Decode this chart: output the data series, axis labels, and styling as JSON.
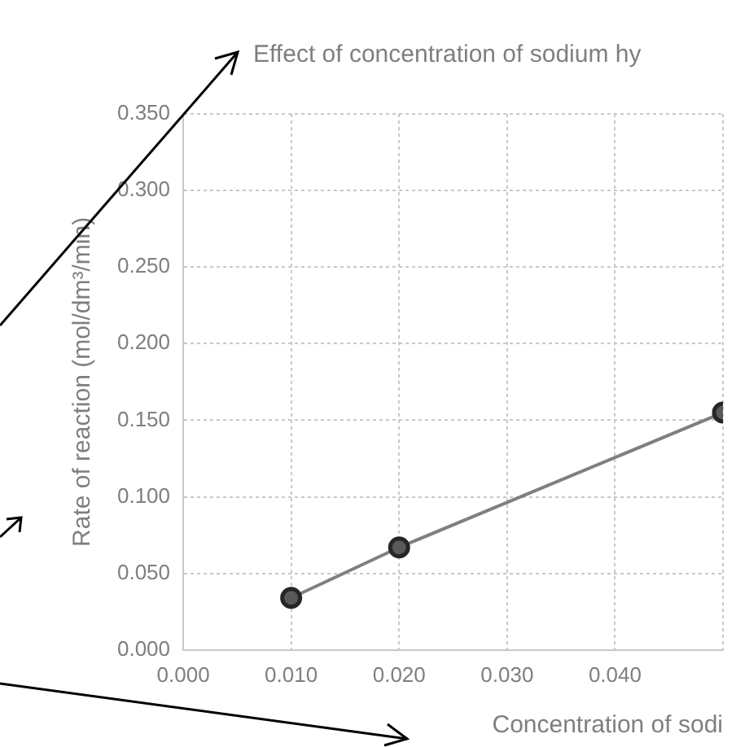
{
  "chart_data": {
    "type": "line",
    "title": "Effect of concentration of sodium hy",
    "xlabel": "Concentration of sodi",
    "ylabel": "Rate of reaction (mol/dm³/min)",
    "x": [
      0.01,
      0.02,
      0.05
    ],
    "series": [
      {
        "color": "#7f7f7f",
        "values": [
          0.034,
          0.067,
          0.155
        ]
      }
    ],
    "xlim": [
      0,
      0.05
    ],
    "xticks": [
      {
        "value": 0,
        "label": "0.000"
      },
      {
        "value": 0.01,
        "label": "0.010"
      },
      {
        "value": 0.02,
        "label": "0.020"
      },
      {
        "value": 0.03,
        "label": "0.030"
      },
      {
        "value": 0.04,
        "label": "0.040"
      },
      {
        "value": 0.05,
        "label": null
      }
    ],
    "ylim": [
      0,
      0.35
    ],
    "yticks": [
      {
        "value": 0,
        "label": "0.000"
      },
      {
        "value": 0.05,
        "label": "0.050"
      },
      {
        "value": 0.1,
        "label": "0.100"
      },
      {
        "value": 0.15,
        "label": "0.150"
      },
      {
        "value": 0.2,
        "label": "0.200"
      },
      {
        "value": 0.25,
        "label": "0.250"
      },
      {
        "value": 0.3,
        "label": "0.300"
      },
      {
        "value": 0.35,
        "label": "0.350"
      }
    ],
    "grid": true,
    "marker": "circle",
    "line_style": "solid",
    "legend": false
  }
}
